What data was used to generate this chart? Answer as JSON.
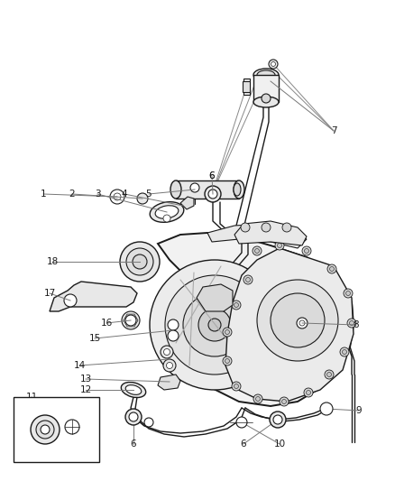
{
  "bg_color": "#ffffff",
  "line_color": "#1a1a1a",
  "label_color": "#1a1a1a",
  "fig_width": 4.38,
  "fig_height": 5.33,
  "dpi": 100,
  "lw_main": 1.4,
  "lw_thin": 0.8,
  "lw_med": 1.0,
  "font_size": 7.5
}
